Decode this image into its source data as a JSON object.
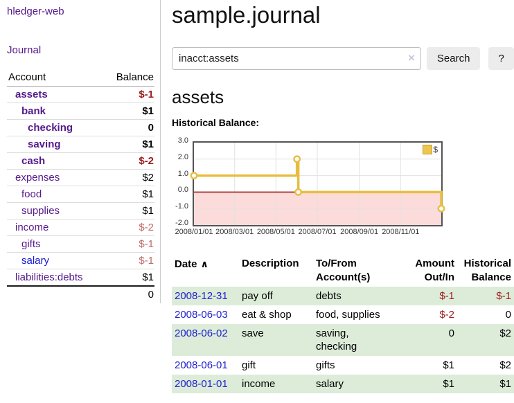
{
  "sidebar": {
    "app_title": "hledger-web",
    "nav_journal": "Journal",
    "accounts": {
      "header_account": "Account",
      "header_balance": "Balance",
      "rows": [
        {
          "name": "assets",
          "level": 1,
          "bold": true,
          "link": "visited",
          "balance": "$-1",
          "balance_style": "neg-strong"
        },
        {
          "name": "bank",
          "level": 2,
          "bold": true,
          "link": "visited",
          "balance": "$1",
          "balance_style": "normal"
        },
        {
          "name": "checking",
          "level": 3,
          "bold": true,
          "link": "visited",
          "balance": "0",
          "balance_style": "normal"
        },
        {
          "name": "saving",
          "level": 3,
          "bold": true,
          "link": "visited",
          "balance": "$1",
          "balance_style": "normal"
        },
        {
          "name": "cash",
          "level": 2,
          "bold": true,
          "link": "visited",
          "balance": "$-2",
          "balance_style": "neg-strong"
        },
        {
          "name": "expenses",
          "level": 1,
          "bold": false,
          "link": "visited",
          "balance": "$2",
          "balance_style": "normal"
        },
        {
          "name": "food",
          "level": 2,
          "bold": false,
          "link": "visited",
          "balance": "$1",
          "balance_style": "normal"
        },
        {
          "name": "supplies",
          "level": 2,
          "bold": false,
          "link": "visited",
          "balance": "$1",
          "balance_style": "normal"
        },
        {
          "name": "income",
          "level": 1,
          "bold": false,
          "link": "visited",
          "balance": "$-2",
          "balance_style": "neg-soft"
        },
        {
          "name": "gifts",
          "level": 2,
          "bold": false,
          "link": "visited",
          "balance": "$-1",
          "balance_style": "neg-soft"
        },
        {
          "name": "salary",
          "level": 2,
          "bold": false,
          "link": "unvisited",
          "balance": "$-1",
          "balance_style": "neg-soft"
        },
        {
          "name": "liabilities:debts",
          "level": 1,
          "bold": false,
          "link": "visited",
          "balance": "$1",
          "balance_style": "normal"
        }
      ],
      "total": "0"
    }
  },
  "main": {
    "title": "sample.journal",
    "search": {
      "value": "inacct:assets",
      "clear_icon": "×",
      "button_label": "Search",
      "help_label": "?"
    },
    "account_heading": "assets",
    "register": {
      "headers": {
        "date": "Date",
        "description": "Description",
        "to_from": "To/From Account(s)",
        "amount": "Amount Out/In",
        "balance": "Historical Balance"
      },
      "sort_icon": "∧",
      "rows": [
        {
          "date": "2008-12-31",
          "description": "pay off",
          "to_from": "debts",
          "amount": "$-1",
          "amount_negative": true,
          "balance": "$-1",
          "balance_negative": true
        },
        {
          "date": "2008-06-03",
          "description": "eat & shop",
          "to_from": "food, supplies",
          "amount": "$-2",
          "amount_negative": true,
          "balance": "0",
          "balance_negative": false
        },
        {
          "date": "2008-06-02",
          "description": "save",
          "to_from": "saving, checking",
          "amount": "0",
          "amount_negative": false,
          "balance": "$2",
          "balance_negative": false
        },
        {
          "date": "2008-06-01",
          "description": "gift",
          "to_from": "gifts",
          "amount": "$1",
          "amount_negative": false,
          "balance": "$2",
          "balance_negative": false
        },
        {
          "date": "2008-01-01",
          "description": "income",
          "to_from": "salary",
          "amount": "$1",
          "amount_negative": false,
          "balance": "$1",
          "balance_negative": false
        }
      ]
    }
  },
  "chart_data": {
    "type": "line",
    "step": true,
    "title": "Historical Balance:",
    "legend": [
      "$"
    ],
    "points": [
      {
        "date": "2008-01-01",
        "value": 1
      },
      {
        "date": "2008-06-01",
        "value": 2
      },
      {
        "date": "2008-06-03",
        "value": 0
      },
      {
        "date": "2008-12-31",
        "value": -1
      }
    ],
    "x_range": [
      "2008-01-01",
      "2008-12-31"
    ],
    "x_ticks": [
      "2008/01/01",
      "2008/03/01",
      "2008/05/01",
      "2008/07/01",
      "2008/09/01",
      "2008/11/01"
    ],
    "y_ticks": [
      3.0,
      2.0,
      1.0,
      0.0,
      -1.0,
      -2.0
    ],
    "ylim": [
      -2,
      3
    ],
    "grid": true,
    "legend_position": "top-right",
    "negative_region_shaded": true
  },
  "colors": {
    "link_visited": "#551a8b",
    "link_unvisited": "#1414d6",
    "date_link": "#2121cf",
    "negative_strong": "#9d1b1b",
    "negative_soft": "#c46a6a",
    "row_green": "#dcecd9",
    "chart_line": "#e8bd3f",
    "chart_negative_bg": "#fcdbdb",
    "chart_zero_line": "#9c0e0e",
    "chart_border": "#545454",
    "button_bg": "#ececec"
  }
}
